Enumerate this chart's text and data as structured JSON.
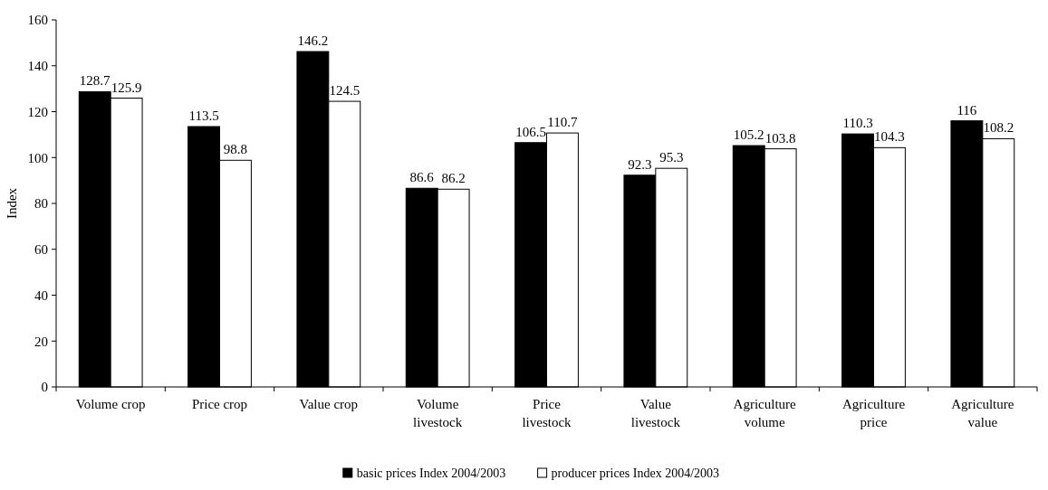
{
  "chart_data": {
    "type": "bar",
    "ylabel": "Index",
    "categories": [
      "Volume crop",
      "Price crop",
      "Value crop",
      "Volume livestock",
      "Price livestock",
      "Value livestock",
      "Agriculture volume",
      "Agriculture price",
      "Agriculture value"
    ],
    "series": [
      {
        "name": "basic prices Index 2004/2003",
        "color": "#000000",
        "values": [
          128.7,
          113.5,
          146.2,
          86.6,
          106.5,
          92.3,
          105.2,
          110.3,
          116
        ]
      },
      {
        "name": "producer prices Index 2004/2003",
        "color": "#ffffff",
        "values": [
          125.9,
          98.8,
          124.5,
          86.2,
          110.7,
          95.3,
          103.8,
          104.3,
          108.2
        ]
      }
    ],
    "ylim": [
      0,
      160
    ],
    "yticks": [
      0,
      20,
      40,
      60,
      80,
      100,
      120,
      140,
      160
    ],
    "grid": false,
    "legend": "bottom",
    "data_labels": true
  }
}
